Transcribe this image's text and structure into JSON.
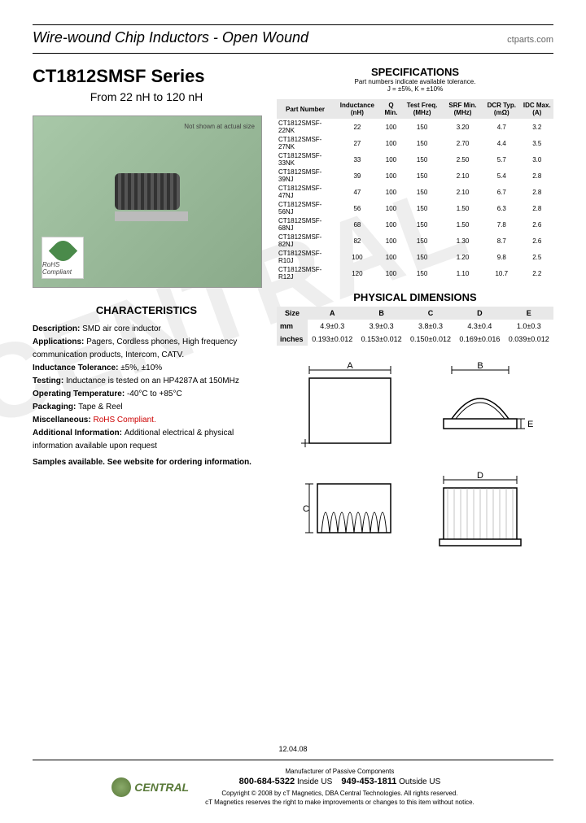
{
  "header": {
    "title": "Wire-wound Chip Inductors - Open Wound",
    "url": "ctparts.com"
  },
  "series": {
    "title": "CT1812SMSF Series",
    "subtitle": "From 22 nH to 120 nH"
  },
  "product_image": {
    "not_shown": "Not shown at actual size",
    "rohs": "RoHS Compliant"
  },
  "characteristics": {
    "title": "CHARACTERISTICS",
    "items": [
      {
        "label": "Description:",
        "value": "SMD air core inductor"
      },
      {
        "label": "Applications:",
        "value": "Pagers, Cordless phones, High frequency communication products, Intercom, CATV."
      },
      {
        "label": "Inductance Tolerance:",
        "value": "±5%, ±10%"
      },
      {
        "label": "Testing:",
        "value": "Inductance is tested on an HP4287A at 150MHz"
      },
      {
        "label": "Operating Temperature:",
        "value": "-40°C to +85°C"
      },
      {
        "label": "Packaging:",
        "value": "Tape & Reel"
      },
      {
        "label": "Miscellaneous:",
        "value": "RoHS Compliant.",
        "rohs": true
      },
      {
        "label": "Additional Information:",
        "value": "Additional electrical & physical information available upon request"
      }
    ],
    "samples": "Samples available. See website for ordering information."
  },
  "specifications": {
    "title": "SPECIFICATIONS",
    "subtitle": "Part numbers indicate available tolerance.",
    "subtitle2": "J = ±5%, K = ±10%",
    "columns": [
      "Part Number",
      "Inductance (nH)",
      "Q Min.",
      "Test Freq. (MHz)",
      "SRF Min. (MHz)",
      "DCR Typ. (mΩ)",
      "IDC Max. (A)"
    ],
    "rows": [
      [
        "CT1812SMSF-22NK",
        "22",
        "100",
        "150",
        "3.20",
        "4.7",
        "3.2"
      ],
      [
        "CT1812SMSF-27NK",
        "27",
        "100",
        "150",
        "2.70",
        "4.4",
        "3.5"
      ],
      [
        "CT1812SMSF-33NK",
        "33",
        "100",
        "150",
        "2.50",
        "5.7",
        "3.0"
      ],
      [
        "CT1812SMSF-39NJ",
        "39",
        "100",
        "150",
        "2.10",
        "5.4",
        "2.8"
      ],
      [
        "CT1812SMSF-47NJ",
        "47",
        "100",
        "150",
        "2.10",
        "6.7",
        "2.8"
      ],
      [
        "CT1812SMSF-56NJ",
        "56",
        "100",
        "150",
        "1.50",
        "6.3",
        "2.8"
      ],
      [
        "CT1812SMSF-68NJ",
        "68",
        "100",
        "150",
        "1.50",
        "7.8",
        "2.6"
      ],
      [
        "CT1812SMSF-82NJ",
        "82",
        "100",
        "150",
        "1.30",
        "8.7",
        "2.6"
      ],
      [
        "CT1812SMSF-R10J",
        "100",
        "100",
        "150",
        "1.20",
        "9.8",
        "2.5"
      ],
      [
        "CT1812SMSF-R12J",
        "120",
        "100",
        "150",
        "1.10",
        "10.7",
        "2.2"
      ]
    ]
  },
  "physical": {
    "title": "PHYSICAL DIMENSIONS",
    "columns": [
      "Size",
      "A",
      "B",
      "C",
      "D",
      "E"
    ],
    "rows": [
      [
        "mm",
        "4.9±0.3",
        "3.9±0.3",
        "3.8±0.3",
        "4.3±0.4",
        "1.0±0.3"
      ],
      [
        "inches",
        "0.193±0.012",
        "0.153±0.012",
        "0.150±0.012",
        "0.169±0.016",
        "0.039±0.012"
      ]
    ]
  },
  "diagrams": {
    "labels": {
      "a": "A",
      "b": "B",
      "c": "C",
      "d": "D",
      "e": "E"
    }
  },
  "footer": {
    "date": "12.04.08",
    "logo": "CENTRAL",
    "tagline": "Manufacturer of Passive Components",
    "phone1": "800-684-5322",
    "phone1_loc": "Inside US",
    "phone2": "949-453-1811",
    "phone2_loc": "Outside US",
    "copyright": "Copyright © 2008 by cT Magnetics, DBA Central Technologies. All rights reserved.",
    "disclaimer": "cT Magnetics reserves the right to make improvements or changes to this item without notice."
  }
}
